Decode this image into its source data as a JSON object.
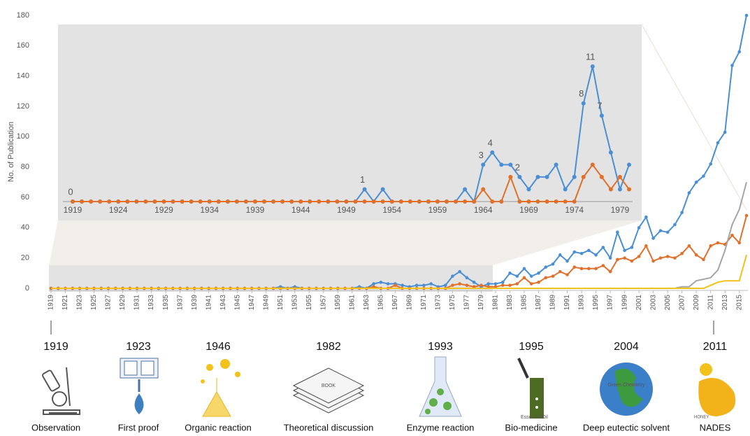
{
  "chart_data": [
    {
      "type": "line",
      "y_label": "No. of Publication",
      "x": [
        1919,
        1920,
        1921,
        1922,
        1923,
        1924,
        1925,
        1926,
        1927,
        1928,
        1929,
        1930,
        1931,
        1932,
        1933,
        1934,
        1935,
        1936,
        1937,
        1938,
        1939,
        1940,
        1941,
        1942,
        1943,
        1944,
        1945,
        1946,
        1947,
        1948,
        1949,
        1950,
        1951,
        1952,
        1953,
        1954,
        1955,
        1956,
        1957,
        1958,
        1959,
        1960,
        1961,
        1962,
        1963,
        1964,
        1965,
        1966,
        1967,
        1968,
        1969,
        1970,
        1971,
        1972,
        1973,
        1974,
        1975,
        1976,
        1977,
        1978,
        1979,
        1980,
        1981,
        1982,
        1983,
        1984,
        1985,
        1986,
        1987,
        1988,
        1989,
        1990,
        1991,
        1992,
        1993,
        1994,
        1995,
        1996,
        1997,
        1998,
        1999,
        2000,
        2001,
        2002,
        2003,
        2004,
        2005,
        2006,
        2007,
        2008,
        2009,
        2010,
        2011,
        2012,
        2013,
        2014,
        2015,
        2016
      ],
      "xlim": [
        1919,
        2016
      ],
      "xticks": [
        1919,
        1921,
        1923,
        1925,
        1927,
        1929,
        1931,
        1933,
        1935,
        1937,
        1939,
        1941,
        1943,
        1945,
        1947,
        1949,
        1951,
        1953,
        1955,
        1957,
        1959,
        1961,
        1963,
        1965,
        1967,
        1969,
        1971,
        1973,
        1975,
        1977,
        1979,
        1981,
        1983,
        1985,
        1987,
        1989,
        1991,
        1993,
        1995,
        1997,
        1999,
        2001,
        2003,
        2005,
        2007,
        2009,
        2011,
        2013,
        2015
      ],
      "ylim": [
        0,
        180
      ],
      "yticks": [
        0,
        20,
        40,
        60,
        80,
        100,
        120,
        140,
        160,
        180
      ],
      "series": [
        {
          "color": "#4a8fd4",
          "markers": true,
          "values": [
            0,
            0,
            0,
            0,
            0,
            0,
            0,
            0,
            0,
            0,
            0,
            0,
            0,
            0,
            0,
            0,
            0,
            0,
            0,
            0,
            0,
            0,
            0,
            0,
            0,
            0,
            0,
            0,
            0,
            0,
            0,
            0,
            1,
            0,
            1,
            0,
            0,
            0,
            0,
            0,
            0,
            0,
            0,
            1,
            0,
            3,
            4,
            3,
            3,
            2,
            1,
            2,
            2,
            3,
            1,
            2,
            8,
            11,
            7,
            4,
            1,
            3,
            3,
            4,
            10,
            8,
            13,
            8,
            10,
            14,
            16,
            22,
            18,
            24,
            23,
            25,
            22,
            27,
            20,
            37,
            25,
            27,
            40,
            47,
            33,
            38,
            37,
            42,
            50,
            63,
            70,
            74,
            82,
            96,
            103,
            147,
            156,
            180
          ]
        },
        {
          "color": "#e0702a",
          "markers": true,
          "values": [
            0,
            0,
            0,
            0,
            0,
            0,
            0,
            0,
            0,
            0,
            0,
            0,
            0,
            0,
            0,
            0,
            0,
            0,
            0,
            0,
            0,
            0,
            0,
            0,
            0,
            0,
            0,
            0,
            0,
            0,
            0,
            0,
            0,
            0,
            0,
            0,
            0,
            0,
            0,
            0,
            0,
            0,
            0,
            0,
            0,
            1,
            0,
            0,
            2,
            0,
            0,
            0,
            0,
            0,
            0,
            0,
            2,
            3,
            2,
            1,
            2,
            1,
            1,
            2,
            2,
            3,
            7,
            3,
            4,
            7,
            8,
            11,
            9,
            14,
            13,
            13,
            13,
            15,
            11,
            19,
            20,
            18,
            21,
            28,
            18,
            20,
            21,
            20,
            23,
            28,
            22,
            19,
            28,
            30,
            29,
            35,
            30,
            48
          ]
        },
        {
          "color": "#a5a5a5",
          "markers": false,
          "values": [
            0,
            0,
            0,
            0,
            0,
            0,
            0,
            0,
            0,
            0,
            0,
            0,
            0,
            0,
            0,
            0,
            0,
            0,
            0,
            0,
            0,
            0,
            0,
            0,
            0,
            0,
            0,
            0,
            0,
            0,
            0,
            0,
            0,
            0,
            0,
            0,
            0,
            0,
            0,
            0,
            0,
            0,
            0,
            0,
            0,
            0,
            0,
            0,
            0,
            0,
            0,
            0,
            0,
            0,
            0,
            0,
            0,
            0,
            0,
            0,
            0,
            0,
            0,
            0,
            0,
            0,
            0,
            0,
            0,
            0,
            0,
            0,
            0,
            0,
            0,
            0,
            0,
            0,
            0,
            0,
            0,
            0,
            0,
            0,
            0,
            0,
            0,
            0,
            1,
            1,
            5,
            6,
            7,
            12,
            25,
            42,
            52,
            70
          ]
        },
        {
          "color": "#f2c21a",
          "markers": false,
          "values": [
            0,
            0,
            0,
            0,
            0,
            0,
            0,
            0,
            0,
            0,
            0,
            0,
            0,
            0,
            0,
            0,
            0,
            0,
            0,
            0,
            0,
            0,
            0,
            0,
            0,
            0,
            0,
            0,
            0,
            0,
            0,
            0,
            0,
            0,
            0,
            0,
            0,
            0,
            0,
            0,
            0,
            0,
            0,
            0,
            0,
            0,
            0,
            0,
            0,
            0,
            0,
            0,
            0,
            0,
            0,
            0,
            0,
            0,
            0,
            0,
            0,
            0,
            0,
            0,
            0,
            0,
            0,
            0,
            0,
            0,
            0,
            0,
            0,
            0,
            0,
            0,
            0,
            0,
            0,
            0,
            0,
            0,
            0,
            0,
            0,
            0,
            0,
            0,
            0,
            0,
            0,
            0,
            2,
            4,
            5,
            5,
            5,
            22
          ]
        }
      ]
    },
    {
      "type": "line",
      "x": [
        1919,
        1920,
        1921,
        1922,
        1923,
        1924,
        1925,
        1926,
        1927,
        1928,
        1929,
        1930,
        1931,
        1932,
        1933,
        1934,
        1935,
        1936,
        1937,
        1938,
        1939,
        1940,
        1941,
        1942,
        1943,
        1944,
        1945,
        1946,
        1947,
        1948,
        1949,
        1950,
        1951,
        1952,
        1953,
        1954,
        1955,
        1956,
        1957,
        1958,
        1959,
        1960,
        1961,
        1962,
        1963,
        1964,
        1965,
        1966,
        1967,
        1968,
        1969,
        1970,
        1971,
        1972,
        1973,
        1974,
        1975,
        1976,
        1977,
        1978,
        1979,
        1980
      ],
      "xlim": [
        1919,
        1980
      ],
      "xticks": [
        1919,
        1924,
        1929,
        1934,
        1939,
        1944,
        1949,
        1954,
        1959,
        1964,
        1969,
        1974,
        1979
      ],
      "ylim": [
        0,
        12
      ],
      "data_label_indices": [
        0,
        32,
        45,
        46,
        49,
        56,
        57,
        58
      ],
      "series": [
        {
          "color": "#4a8fd4",
          "markers": true,
          "values": [
            0,
            0,
            0,
            0,
            0,
            0,
            0,
            0,
            0,
            0,
            0,
            0,
            0,
            0,
            0,
            0,
            0,
            0,
            0,
            0,
            0,
            0,
            0,
            0,
            0,
            0,
            0,
            0,
            0,
            0,
            0,
            0,
            1,
            0,
            1,
            0,
            0,
            0,
            0,
            0,
            0,
            0,
            0,
            1,
            0,
            3,
            4,
            3,
            3,
            2,
            1,
            2,
            2,
            3,
            1,
            2,
            8,
            11,
            7,
            4,
            1,
            3
          ]
        },
        {
          "color": "#e0702a",
          "markers": true,
          "values": [
            0,
            0,
            0,
            0,
            0,
            0,
            0,
            0,
            0,
            0,
            0,
            0,
            0,
            0,
            0,
            0,
            0,
            0,
            0,
            0,
            0,
            0,
            0,
            0,
            0,
            0,
            0,
            0,
            0,
            0,
            0,
            0,
            0,
            0,
            0,
            0,
            0,
            0,
            0,
            0,
            0,
            0,
            0,
            0,
            0,
            1,
            0,
            0,
            2,
            0,
            0,
            0,
            0,
            0,
            0,
            0,
            2,
            3,
            2,
            1,
            2,
            1
          ]
        }
      ]
    }
  ],
  "milestones": [
    {
      "year": "1919",
      "label": "Observation"
    },
    {
      "year": "1923",
      "label": "First proof"
    },
    {
      "year": "1946",
      "label": "Organic reaction"
    },
    {
      "year": "1982",
      "label": "Theoretical discussion"
    },
    {
      "year": "1993",
      "label": "Enzyme reaction"
    },
    {
      "year": "1995",
      "label": "Bio-medicine"
    },
    {
      "year": "2004",
      "label": "Deep eutectic solvent"
    },
    {
      "year": "2011",
      "label": "NADES"
    }
  ],
  "icon_texts": {
    "book": "BOOK",
    "oil": "Essential Oil",
    "globe": "Green Chemistry",
    "honey": "HONEY"
  }
}
